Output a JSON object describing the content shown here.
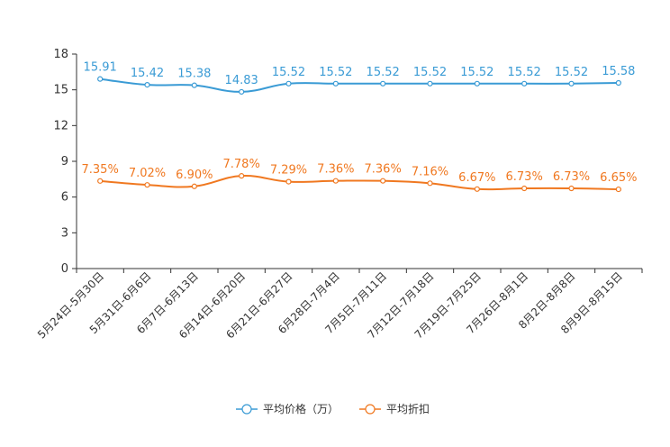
{
  "chart_data": {
    "type": "line",
    "categories": [
      "5月24日-5月30日",
      "5月31日-6月6日",
      "6月7日-6月13日",
      "6月14日-6月20日",
      "6月21日-6月27日",
      "6月28日-7月4日",
      "7月5日-7月11日",
      "7月12日-7月18日",
      "7月19日-7月25日",
      "7月26日-8月1日",
      "8月2日-8月8日",
      "8月9日-8月15日"
    ],
    "series": [
      {
        "name": "平均价格（万）",
        "color": "#3a9bd5",
        "values": [
          15.91,
          15.42,
          15.38,
          14.83,
          15.52,
          15.52,
          15.52,
          15.52,
          15.52,
          15.52,
          15.52,
          15.58
        ],
        "labels": [
          "15.91",
          "15.42",
          "15.38",
          "14.83",
          "15.52",
          "15.52",
          "15.52",
          "15.52",
          "15.52",
          "15.52",
          "15.52",
          "15.58"
        ]
      },
      {
        "name": "平均折扣",
        "color": "#f07820",
        "values": [
          7.35,
          7.02,
          6.9,
          7.78,
          7.29,
          7.36,
          7.36,
          7.16,
          6.67,
          6.73,
          6.73,
          6.65
        ],
        "labels": [
          "7.35%",
          "7.02%",
          "6.90%",
          "7.78%",
          "7.29%",
          "7.36%",
          "7.36%",
          "7.16%",
          "6.67%",
          "6.73%",
          "6.73%",
          "6.65%"
        ]
      }
    ],
    "yticks": [
      "0",
      "3",
      "6",
      "9",
      "12",
      "15",
      "18"
    ],
    "ylim": [
      0,
      18
    ],
    "title": "",
    "xlabel": "",
    "ylabel": "",
    "legend_position": "bottom-center"
  }
}
